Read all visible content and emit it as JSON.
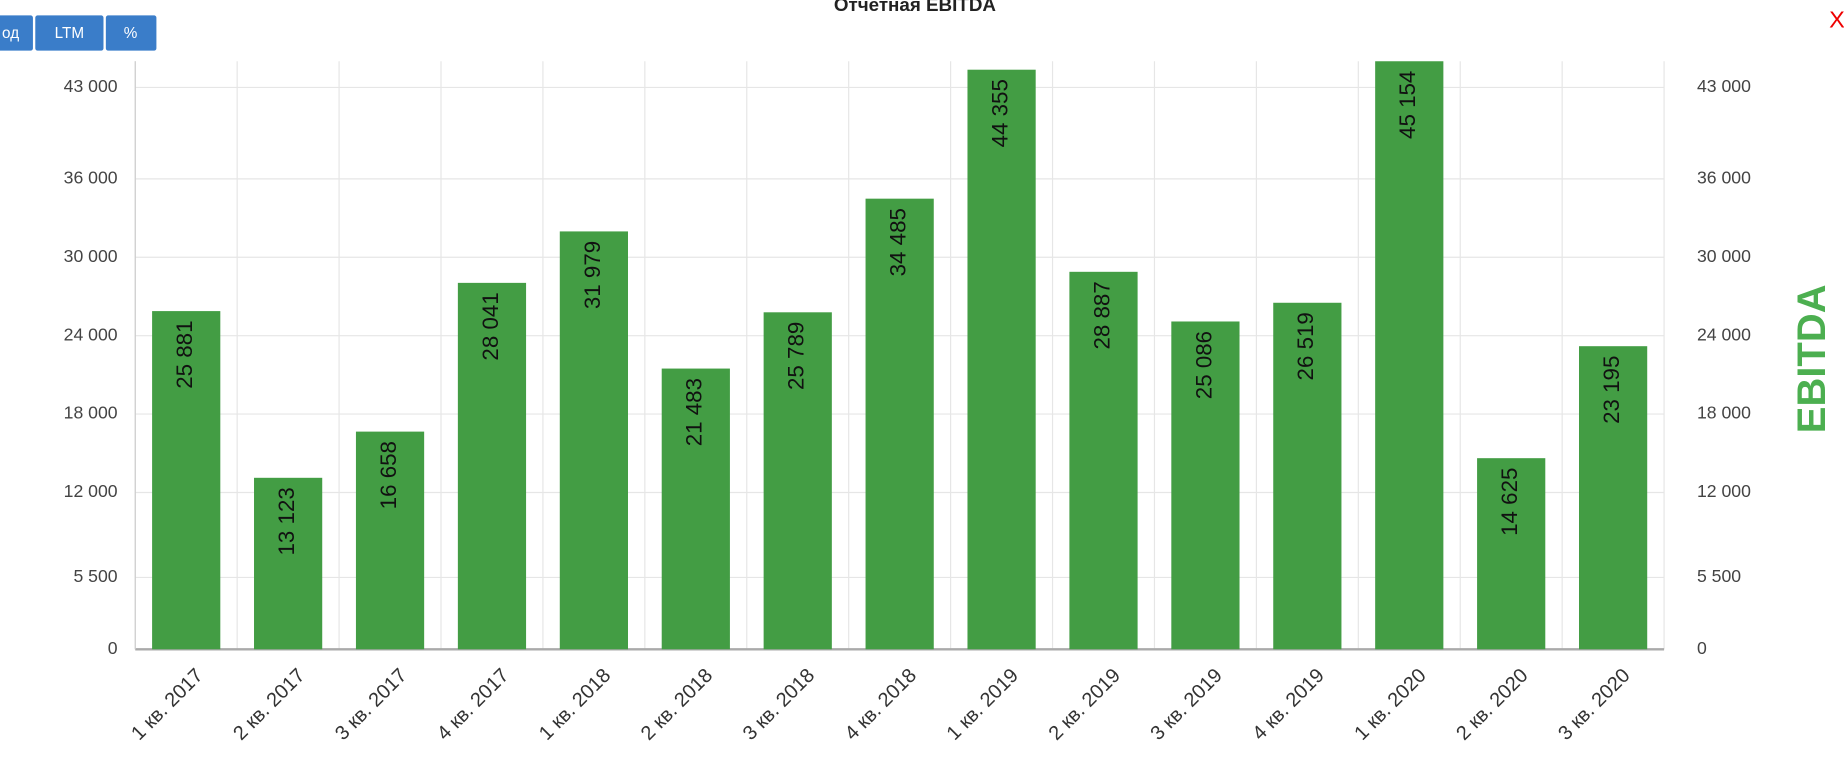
{
  "chart_data": {
    "type": "bar",
    "title": "Отчетная EBITDA",
    "buttons": [
      "од",
      "LTM",
      "%"
    ],
    "close": "X",
    "y2_label": "EBITDA",
    "categories": [
      "1 кв. 2017",
      "2 кв. 2017",
      "3 кв. 2017",
      "4 кв. 2017",
      "1 кв. 2018",
      "2 кв. 2018",
      "3 кв. 2018",
      "4 кв. 2018",
      "1 кв. 2019",
      "2 кв. 2019",
      "3 кв. 2019",
      "4 кв. 2019",
      "1 кв. 2020",
      "2 кв. 2020",
      "3 кв. 2020"
    ],
    "values": [
      25881,
      13123,
      16658,
      28041,
      31979,
      21483,
      25789,
      34485,
      44355,
      28887,
      25086,
      26519,
      45154,
      14625,
      23195
    ],
    "value_labels": [
      "25 881",
      "13 123",
      "16 658",
      "28 041",
      "31 979",
      "21 483",
      "25 789",
      "34 485",
      "44 355",
      "28 887",
      "25 086",
      "26 519",
      "45 154",
      "14 625",
      "23 195"
    ],
    "color": "#439d44",
    "ylim": [
      0,
      45000
    ],
    "yticks": [
      0,
      {
        "value": 5500,
        "label": "5 500"
      },
      {
        "value": 12000,
        "label": "12 000"
      },
      {
        "value": 18000,
        "label": "18 000"
      },
      {
        "value": 24000,
        "label": "24 000"
      },
      {
        "value": 30000,
        "label": "30 000"
      },
      {
        "value": 36000,
        "label": "36 000"
      },
      {
        "value": 43000,
        "label": "43 000"
      }
    ],
    "y2lim": [
      0,
      45000
    ],
    "y2ticks": [
      0,
      {
        "value": 5500,
        "label": "5 500"
      },
      {
        "value": 12000,
        "label": "12 000"
      },
      {
        "value": 18000,
        "label": "18 000"
      },
      {
        "value": 24000,
        "label": "24 000"
      },
      {
        "value": 30000,
        "label": "30 000"
      },
      {
        "value": 36000,
        "label": "36 000"
      },
      {
        "value": 43000,
        "label": "43 000"
      }
    ],
    "grid": true
  }
}
